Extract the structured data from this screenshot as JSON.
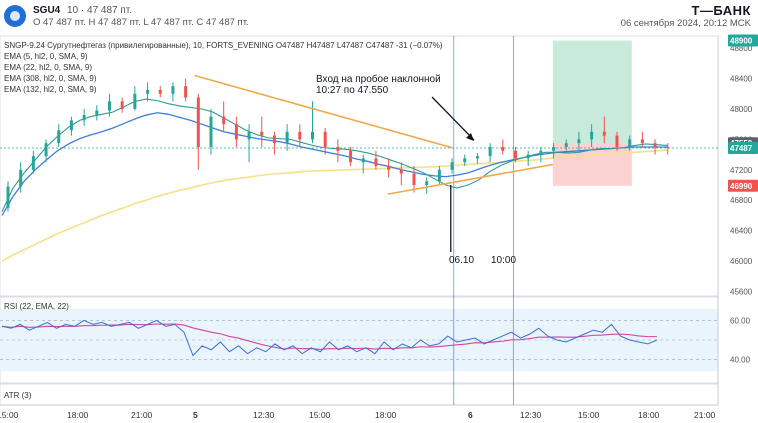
{
  "header": {
    "symbol": "SGU4",
    "info": "10 · 47 487 пт.",
    "ohlc": "O 47 487 пт.   H 47 487 пт.   L 47 487 пт.   C 47 487 пт.",
    "brand": "Т—БАНК",
    "datetime": "06 сентября 2024, 20:12 MCK"
  },
  "main_legend": [
    "SNGP-9.24 Сургутнефтегаз (привилегированные), 10, FORTS_EVENING  O47487  H47487  L47487  C47487  -31 (−0.07%)",
    "EMA (5, hl2, 0, SMA, 9)",
    "EMA (22, hl2, 0, SMA, 9)",
    "EMA (308, hl2, 0, SMA, 9)",
    "EMA (132, hl2, 0, SMA, 9)"
  ],
  "annotation": {
    "line1": "Вход на пробое наклонной",
    "line2": "10:27 по 47.550"
  },
  "vertical_labels": {
    "date": "06.10",
    "time": "10:00"
  },
  "rsi_legend": "RSI (22, EMA, 22)",
  "atr_legend": "ATR (3)",
  "colors": {
    "accent_blue": "#2962ff",
    "ema_fast": "#2f9c8f",
    "ema_mid": "#3f7de0",
    "ema_slow": "#f7e08a",
    "trendline": "#f0a84a",
    "rsi_line": "#3a6ed8",
    "rsi_ma": "#d645a0",
    "bull": "#26a69a",
    "bear": "#ef5350",
    "target_zone": "#9ad9bb",
    "stop_zone": "#f8b4b4"
  },
  "chart_data": {
    "type": "candlestick",
    "title": "SNGP-9.24 Сургутнефтегаз (привилегированные), 10, FORTS_EVENING",
    "price_axis": {
      "ticks": [
        48800,
        48400,
        48000,
        47600,
        47200,
        46800,
        46400,
        46000,
        45600
      ],
      "ylim": [
        45540,
        48960
      ]
    },
    "price_labels": [
      {
        "text": "48900",
        "value": 48900,
        "color": "#26a69a"
      },
      {
        "text": "47550",
        "value": 47550,
        "color": "#5a6270"
      },
      {
        "text": "47487",
        "value": 47487,
        "color": "#26a69a"
      },
      {
        "text": "46990",
        "value": 46990,
        "color": "#ef5350"
      }
    ],
    "time_axis": {
      "ticks": [
        "15:00",
        "18:00",
        "21:00",
        "5",
        "12:30",
        "15:00",
        "18:00",
        "6",
        "12:30",
        "15:00",
        "18:00",
        "21:00"
      ]
    },
    "trend_lines": [
      {
        "name": "upper",
        "from": [
          0.271,
          48440
        ],
        "to": [
          0.63,
          47490
        ]
      },
      {
        "name": "lower",
        "from": [
          0.54,
          46880
        ],
        "to": [
          0.77,
          47270
        ]
      }
    ],
    "vertical_lines": [
      0.632,
      0.715
    ],
    "entry_zone": {
      "x": [
        0.77,
        0.88
      ],
      "target": 48900,
      "entry": 47550,
      "stop": 46990
    },
    "ema_fast": [
      46650,
      46960,
      47160,
      47330,
      47500,
      47640,
      47760,
      47850,
      47900,
      47930,
      47960,
      48030,
      48100,
      48130,
      48110,
      48070,
      48040,
      48020,
      48000,
      47960,
      47880,
      47800,
      47720,
      47660,
      47620,
      47610,
      47600,
      47560,
      47520,
      47490,
      47480,
      47470,
      47450,
      47420,
      47380,
      47330,
      47280,
      47220,
      47160,
      47080,
      47000,
      46960,
      47000,
      47070,
      47180,
      47260,
      47320,
      47360,
      47400,
      47430,
      47430,
      47420,
      47430,
      47460,
      47480,
      47480,
      47490,
      47520,
      47540,
      47530,
      47520
    ],
    "ema_mid": [
      46600,
      46850,
      47050,
      47200,
      47330,
      47450,
      47540,
      47610,
      47660,
      47700,
      47750,
      47810,
      47870,
      47920,
      47950,
      47930,
      47890,
      47850,
      47800,
      47750,
      47700,
      47670,
      47640,
      47610,
      47590,
      47570,
      47540,
      47500,
      47470,
      47440,
      47410,
      47380,
      47340,
      47310,
      47270,
      47240,
      47200,
      47170,
      47140,
      47120,
      47110,
      47130,
      47160,
      47210,
      47260,
      47300,
      47330,
      47360,
      47390,
      47410,
      47430,
      47440,
      47450,
      47460,
      47470,
      47480,
      47490,
      47500,
      47500,
      47500,
      47500
    ],
    "ema_slow": [
      46000,
      46080,
      46150,
      46220,
      46290,
      46360,
      46420,
      46480,
      46540,
      46600,
      46650,
      46700,
      46760,
      46800,
      46850,
      46890,
      46930,
      46960,
      47000,
      47030,
      47060,
      47080,
      47100,
      47120,
      47140,
      47150,
      47160,
      47175,
      47185,
      47190,
      47195,
      47200,
      47205,
      47210,
      47215,
      47220,
      47225,
      47230,
      47235,
      47240,
      47250,
      47260,
      47270,
      47280,
      47290,
      47300,
      47310,
      47320,
      47330,
      47345,
      47360,
      47370,
      47380,
      47390,
      47400,
      47410,
      47420,
      47430,
      47440,
      47450,
      47460
    ],
    "candles": [
      [
        46700,
        47050,
        46650,
        46980
      ],
      [
        46980,
        47300,
        46900,
        47200
      ],
      [
        47200,
        47450,
        47150,
        47380
      ],
      [
        47380,
        47600,
        47300,
        47550
      ],
      [
        47550,
        47800,
        47500,
        47720
      ],
      [
        47720,
        47900,
        47650,
        47850
      ],
      [
        47850,
        48000,
        47780,
        47920
      ],
      [
        47920,
        48050,
        47850,
        47980
      ],
      [
        47980,
        48200,
        47900,
        48100
      ],
      [
        48100,
        48150,
        47950,
        48000
      ],
      [
        48000,
        48300,
        47980,
        48200
      ],
      [
        48200,
        48350,
        48100,
        48250
      ],
      [
        48250,
        48300,
        48150,
        48200
      ],
      [
        48200,
        48350,
        48100,
        48300
      ],
      [
        48300,
        48400,
        48100,
        48150
      ],
      [
        48150,
        48200,
        47200,
        47500
      ],
      [
        47500,
        48000,
        47400,
        47900
      ],
      [
        47900,
        48100,
        47700,
        47800
      ],
      [
        47800,
        47900,
        47500,
        47600
      ],
      [
        47600,
        47800,
        47300,
        47700
      ],
      [
        47700,
        47900,
        47500,
        47650
      ],
      [
        47650,
        47700,
        47400,
        47550
      ],
      [
        47550,
        47800,
        47450,
        47700
      ],
      [
        47700,
        47800,
        47500,
        47600
      ],
      [
        47600,
        48100,
        47550,
        47700
      ],
      [
        47700,
        47750,
        47400,
        47500
      ],
      [
        47500,
        47600,
        47300,
        47450
      ],
      [
        47450,
        47500,
        47250,
        47300
      ],
      [
        47300,
        47400,
        47150,
        47350
      ],
      [
        47350,
        47450,
        47200,
        47250
      ],
      [
        47250,
        47350,
        47100,
        47200
      ],
      [
        47200,
        47300,
        47000,
        47150
      ],
      [
        47150,
        47250,
        46900,
        47000
      ],
      [
        47000,
        47100,
        46880,
        47050
      ],
      [
        47050,
        47250,
        47000,
        47200
      ],
      [
        47200,
        47350,
        47150,
        47300
      ],
      [
        47300,
        47400,
        47250,
        47350
      ],
      [
        47350,
        47420,
        47280,
        47380
      ],
      [
        47380,
        47550,
        47300,
        47500
      ],
      [
        47500,
        47600,
        47400,
        47450
      ],
      [
        47450,
        47500,
        47300,
        47350
      ],
      [
        47350,
        47450,
        47250,
        47400
      ],
      [
        47400,
        47500,
        47300,
        47450
      ],
      [
        47450,
        47550,
        47350,
        47500
      ],
      [
        47500,
        47600,
        47450,
        47550
      ],
      [
        47550,
        47700,
        47450,
        47600
      ],
      [
        47600,
        47800,
        47500,
        47700
      ],
      [
        47700,
        47900,
        47550,
        47650
      ],
      [
        47650,
        47700,
        47450,
        47500
      ],
      [
        47500,
        47650,
        47450,
        47600
      ],
      [
        47600,
        47700,
        47500,
        47550
      ],
      [
        47550,
        47600,
        47400,
        47500
      ],
      [
        47500,
        47550,
        47400,
        47487
      ]
    ],
    "rsi": {
      "axis_ticks": [
        60,
        40
      ],
      "ylim": [
        28,
        72
      ],
      "values": [
        57,
        56,
        58,
        55,
        57,
        59,
        56,
        58,
        57,
        60,
        58,
        59,
        57,
        58,
        59,
        56,
        58,
        60,
        57,
        58,
        54,
        42,
        47,
        45,
        49,
        44,
        47,
        43,
        46,
        44,
        48,
        45,
        47,
        43,
        46,
        44,
        49,
        45,
        47,
        44,
        46,
        43,
        49,
        45,
        48,
        46,
        50,
        47,
        48,
        52,
        49,
        50,
        51,
        48,
        50,
        52,
        54,
        51,
        53,
        56,
        52,
        50,
        49,
        51,
        53,
        55,
        54,
        58,
        52,
        50,
        49,
        48,
        50
      ]
    }
  }
}
